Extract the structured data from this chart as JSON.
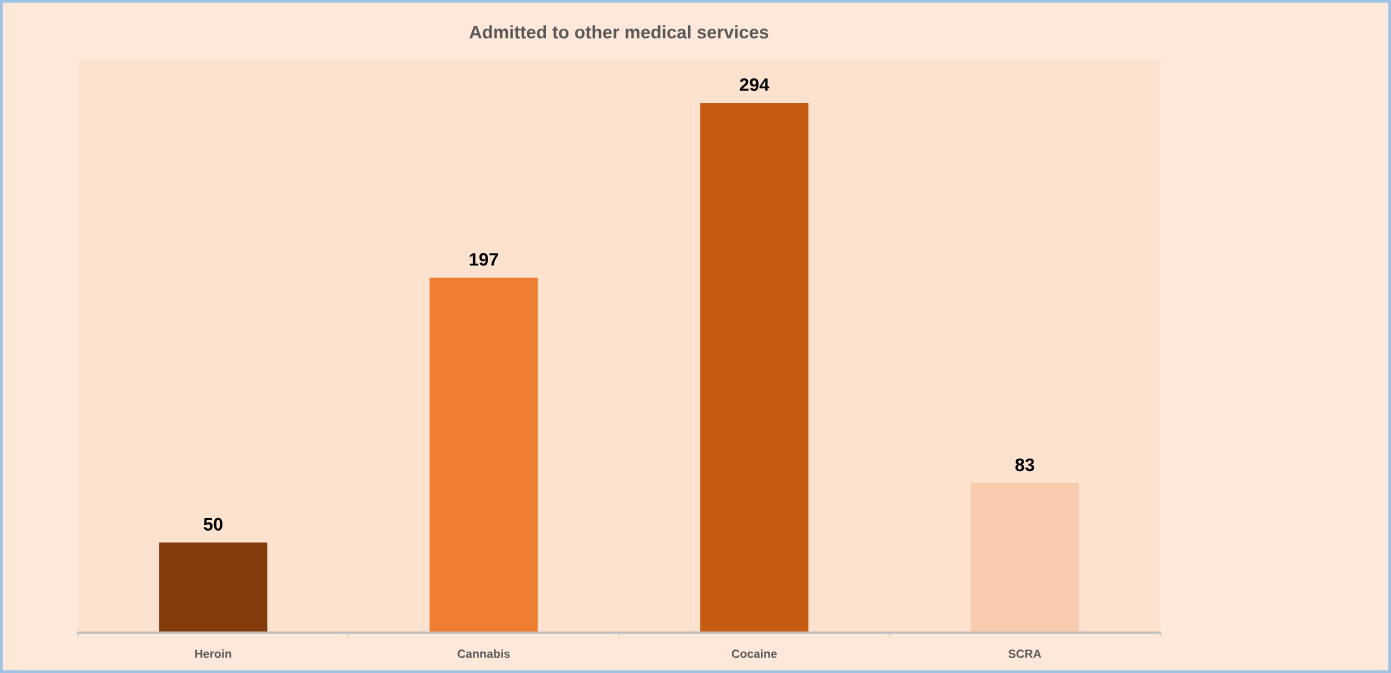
{
  "chart_data": {
    "type": "bar",
    "title": "Admitted to other medical services",
    "categories": [
      "Heroin",
      "Cannabis",
      "Cocaine",
      "SCRA"
    ],
    "values": [
      50,
      197,
      294,
      83
    ],
    "colors": [
      "#843c0c",
      "#ed7d31",
      "#c55a11",
      "#f8cbad"
    ],
    "data_labels": true,
    "tick_labels": "x",
    "grid": false,
    "legend": false
  }
}
